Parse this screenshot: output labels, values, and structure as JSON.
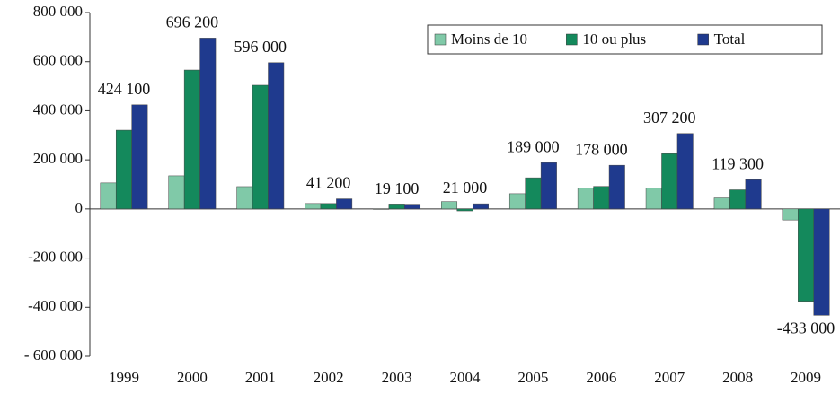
{
  "chart_data": {
    "type": "bar",
    "categories": [
      "1999",
      "2000",
      "2001",
      "2002",
      "2003",
      "2004",
      "2005",
      "2006",
      "2007",
      "2008",
      "2009"
    ],
    "series": [
      {
        "name": "Moins de 10",
        "color": "#80c9a8",
        "values": [
          106000,
          135000,
          91000,
          22000,
          -2000,
          30000,
          62000,
          86000,
          85000,
          45000,
          -45000
        ]
      },
      {
        "name": "10 ou plus",
        "color": "#14895c",
        "values": [
          321000,
          566000,
          504000,
          22000,
          20000,
          -8000,
          127000,
          92000,
          225000,
          78000,
          -376000
        ]
      },
      {
        "name": "Total",
        "color": "#1f3a8e",
        "values": [
          424100,
          696200,
          596000,
          41200,
          19100,
          21000,
          189000,
          178000,
          307200,
          119300,
          -433000
        ],
        "value_labels": [
          "424 100",
          "696 200",
          "596 000",
          "41 200",
          "19 100",
          "21 000",
          "189 000",
          "178 000",
          "307 200",
          "119 300",
          "-433 000"
        ]
      }
    ],
    "ylim": [
      -600000,
      800000
    ],
    "yticks": [
      {
        "value": 800000,
        "label": "800 000"
      },
      {
        "value": 600000,
        "label": "600 000"
      },
      {
        "value": 400000,
        "label": "400 000"
      },
      {
        "value": 200000,
        "label": "200 000"
      },
      0,
      {
        "value": -200000,
        "label": "-200 000"
      },
      {
        "value": -400000,
        "label": "-400 000"
      },
      {
        "value": -600000,
        "label": "- 600 000"
      }
    ],
    "grid": false,
    "legend": "top-right"
  }
}
